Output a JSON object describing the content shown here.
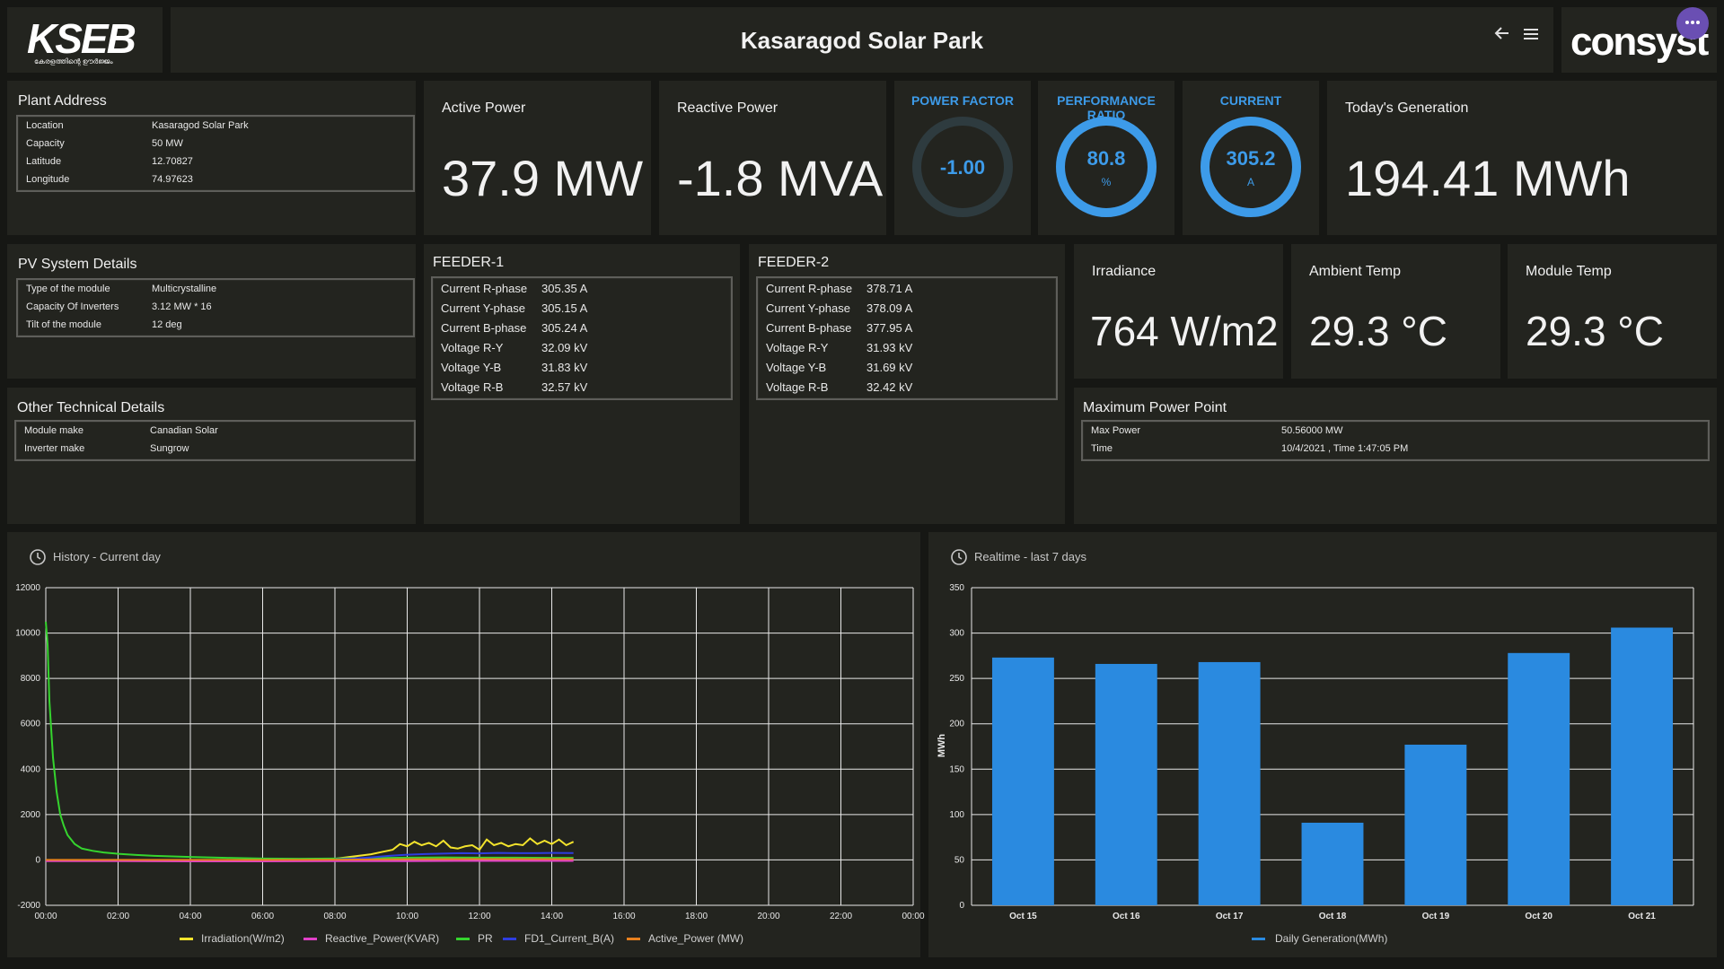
{
  "header": {
    "logo_text": "KSEB",
    "logo_sub": "കേരളത്തിന്റെ ഊർജ്ജം",
    "title": "Kasaragod Solar Park",
    "back_icon": "arrow-left-icon",
    "menu_icon": "hamburger-icon",
    "brand": "consyst"
  },
  "plant_address": {
    "title": "Plant Address",
    "rows": [
      {
        "k": "Location",
        "v": "Kasaragod Solar Park"
      },
      {
        "k": "Capacity",
        "v": "50 MW"
      },
      {
        "k": "Latitude",
        "v": "12.70827"
      },
      {
        "k": "Longitude",
        "v": "74.97623"
      }
    ]
  },
  "active_power": {
    "title": "Active Power",
    "value": "37.9 MW"
  },
  "reactive_power": {
    "title": "Reactive Power",
    "value": "-1.8 MVA"
  },
  "power_factor": {
    "title": "POWER FACTOR",
    "value": "-1.00",
    "unit": "",
    "fill": 0
  },
  "performance_ratio": {
    "title": "PERFORMANCE RATIO",
    "value": "80.8",
    "unit": "%",
    "fill": 1
  },
  "current": {
    "title": "CURRENT",
    "value": "305.2",
    "unit": "A",
    "fill": 1
  },
  "todays_generation": {
    "title": "Today's Generation",
    "value": "194.41 MWh"
  },
  "pv_system": {
    "title": "PV System Details",
    "rows": [
      {
        "k": "Type of the module",
        "v": "Multicrystalline"
      },
      {
        "k": "Capacity Of Inverters",
        "v": "3.12 MW * 16"
      },
      {
        "k": "Tilt of the module",
        "v": "12 deg"
      }
    ]
  },
  "feeder1": {
    "title": "FEEDER-1",
    "rows": [
      {
        "k": "Current R-phase",
        "v": "305.35 A"
      },
      {
        "k": "Current Y-phase",
        "v": "305.15 A"
      },
      {
        "k": "Current B-phase",
        "v": "305.24 A"
      },
      {
        "k": "Voltage R-Y",
        "v": "32.09 kV"
      },
      {
        "k": "Voltage Y-B",
        "v": "31.83 kV"
      },
      {
        "k": "Voltage R-B",
        "v": "32.57 kV"
      }
    ]
  },
  "feeder2": {
    "title": "FEEDER-2",
    "rows": [
      {
        "k": "Current R-phase",
        "v": "378.71 A"
      },
      {
        "k": "Current Y-phase",
        "v": "378.09 A"
      },
      {
        "k": "Current B-phase",
        "v": "377.95 A"
      },
      {
        "k": "Voltage R-Y",
        "v": "31.93 kV"
      },
      {
        "k": "Voltage Y-B",
        "v": "31.69 kV"
      },
      {
        "k": "Voltage R-B",
        "v": "32.42 kV"
      }
    ]
  },
  "irradiance": {
    "title": "Irradiance",
    "value": "764 W/m2"
  },
  "ambient_temp": {
    "title": "Ambient Temp",
    "value": "29.3 °C"
  },
  "module_temp": {
    "title": "Module Temp",
    "value": "29.3 °C"
  },
  "other_tech": {
    "title": "Other Technical Details",
    "rows": [
      {
        "k": "Module make",
        "v": "Canadian Solar"
      },
      {
        "k": "Inverter make",
        "v": "Sungrow"
      }
    ]
  },
  "mpp": {
    "title": "Maximum Power Point",
    "rows": [
      {
        "k": "Max Power",
        "v": "50.56000 MW"
      },
      {
        "k": "Time",
        "v": "10/4/2021 , Time 1:47:05 PM"
      }
    ]
  },
  "colors": {
    "accent": "#3d9be9",
    "irradiation": "#f4e42c",
    "reactive": "#e040c8",
    "pr": "#35d42e",
    "fd1": "#2e3de0",
    "active": "#e8801e",
    "bar": "#2a8ae0"
  },
  "history_chart": {
    "title": "History - Current day",
    "icon": "clock-icon",
    "chart_data": {
      "type": "line",
      "xlim": [
        "00:00",
        "24:00"
      ],
      "ylim": [
        -2000,
        12000
      ],
      "yticks": [
        "12000",
        "10000",
        "8000",
        "6000",
        "4000",
        "2000",
        "0",
        "-2000"
      ],
      "xticks": [
        "00:00",
        "02:00",
        "04:00",
        "06:00",
        "08:00",
        "10:00",
        "12:00",
        "14:00",
        "16:00",
        "18:00",
        "20:00",
        "22:00",
        "00:00"
      ],
      "grid": true,
      "legend": "bottom",
      "series": [
        {
          "name": "Irradiation(W/m2)",
          "color": "#f4e42c",
          "x": [
            8.0,
            8.5,
            9.0,
            9.3,
            9.6,
            9.8,
            10.0,
            10.2,
            10.4,
            10.6,
            10.8,
            11.0,
            11.2,
            11.4,
            11.6,
            11.8,
            12.0,
            12.2,
            12.4,
            12.6,
            12.8,
            13.0,
            13.2,
            13.4,
            13.6,
            13.8,
            14.0,
            14.2,
            14.4,
            14.6
          ],
          "y": [
            50,
            150,
            250,
            350,
            450,
            700,
            600,
            800,
            650,
            750,
            600,
            850,
            550,
            500,
            600,
            650,
            450,
            900,
            650,
            750,
            600,
            700,
            650,
            950,
            700,
            850,
            700,
            900,
            650,
            800
          ]
        },
        {
          "name": "Reactive_Power(KVAR)",
          "color": "#e040c8",
          "x": [
            0,
            2,
            4,
            6,
            8,
            10,
            12,
            14,
            14.6
          ],
          "y": [
            -50,
            -50,
            -60,
            -60,
            -50,
            -50,
            -40,
            -40,
            -40
          ]
        },
        {
          "name": "PR",
          "color": "#35d42e",
          "x": [
            0.0,
            0.05,
            0.1,
            0.2,
            0.3,
            0.4,
            0.5,
            0.6,
            0.8,
            1.0,
            1.3,
            1.6,
            2.0,
            2.5,
            3.0,
            4.0,
            5.0,
            6.0,
            7.0,
            8.0,
            9.0,
            10.0,
            11.0,
            12.0,
            13.0,
            14.0,
            14.6
          ],
          "y": [
            10500,
            9500,
            7000,
            4500,
            3000,
            2000,
            1500,
            1100,
            700,
            500,
            400,
            330,
            270,
            220,
            180,
            130,
            90,
            60,
            50,
            60,
            80,
            100,
            110,
            100,
            100,
            90,
            90
          ]
        },
        {
          "name": "FD1_Current_B(A)",
          "color": "#2e3de0",
          "x": [
            8.0,
            8.5,
            9.0,
            9.5,
            10.0,
            10.5,
            11.0,
            11.5,
            12.0,
            12.5,
            13.0,
            13.5,
            14.0,
            14.6
          ],
          "y": [
            20,
            60,
            110,
            180,
            230,
            260,
            280,
            300,
            290,
            310,
            300,
            300,
            310,
            305
          ]
        },
        {
          "name": "Active_Power (MW)",
          "color": "#e8801e",
          "x": [
            0,
            4,
            6,
            8,
            10,
            12,
            14,
            14.6
          ],
          "y": [
            0,
            0,
            0,
            10,
            30,
            40,
            38,
            38
          ]
        }
      ]
    }
  },
  "daily_chart": {
    "title": "Realtime - last 7 days",
    "icon": "clock-icon",
    "chart_data": {
      "type": "bar",
      "categories": [
        "Oct 15",
        "Oct 16",
        "Oct 17",
        "Oct 18",
        "Oct 19",
        "Oct 20",
        "Oct 21"
      ],
      "series": [
        {
          "name": "Daily Generation(MWh)",
          "values": [
            273,
            266,
            268,
            91,
            177,
            278,
            306
          ]
        }
      ],
      "ylabel": "MWh",
      "ylim": [
        0,
        350
      ],
      "yticks": [
        "350",
        "300",
        "250",
        "200",
        "150",
        "100",
        "50",
        "0"
      ],
      "grid": true,
      "legend": "bottom"
    }
  }
}
